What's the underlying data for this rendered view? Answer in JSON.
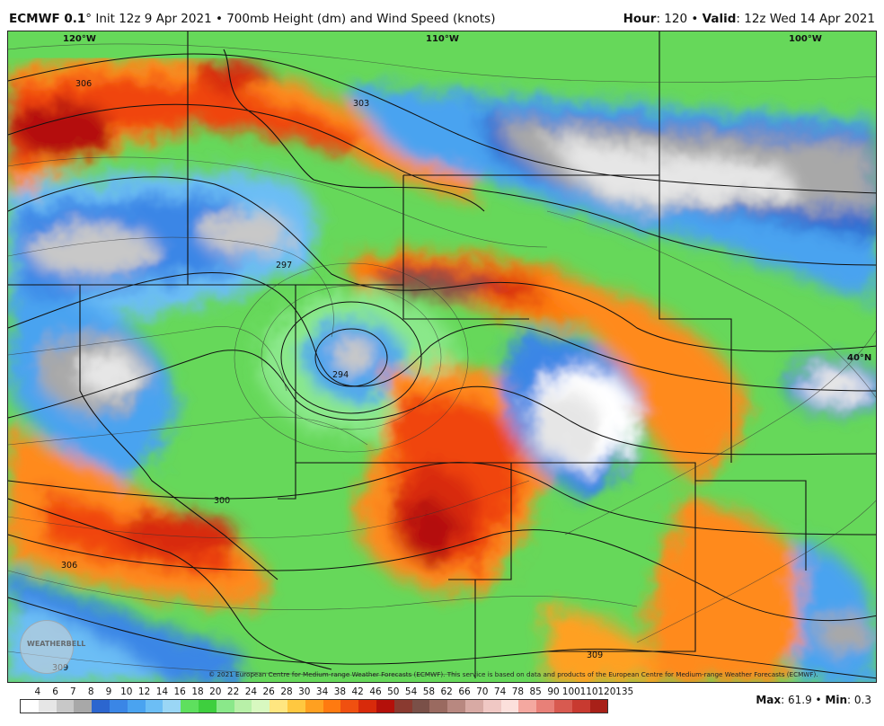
{
  "title": {
    "model": "ECMWF 0.1",
    "degree": "°",
    "init": "Init 12z 9 Apr 2021",
    "sep": "•",
    "product": "700mb Height (dm) and Wind Speed (knots)",
    "hour_label": "Hour",
    "hour_value": "120",
    "valid_label": "Valid",
    "valid_value": "12z Wed 14 Apr 2021"
  },
  "map": {
    "lon_labels": [
      "120°W",
      "110°W",
      "100°W"
    ],
    "lat_labels": [
      "40°N"
    ],
    "height_labels": [
      "306",
      "303",
      "297",
      "294",
      "300",
      "306",
      "309",
      "309"
    ]
  },
  "copyright": "© 2021 European Centre for Medium-range Weather Forecasts (ECMWF). This service is based on data and products of the European Centre for Medium-range Weather Forecasts (ECMWF).",
  "logo_text": "WEATHERBELL",
  "scale": {
    "ticks": [
      "4",
      "6",
      "7",
      "8",
      "9",
      "10",
      "12",
      "14",
      "16",
      "18",
      "20",
      "22",
      "24",
      "26",
      "28",
      "30",
      "34",
      "38",
      "42",
      "46",
      "50",
      "54",
      "58",
      "62",
      "66",
      "70",
      "74",
      "78",
      "85",
      "90",
      "100",
      "110",
      "120",
      "135"
    ],
    "colors": [
      "#ffffff",
      "#e6e6e6",
      "#c8c8c8",
      "#a8a8a8",
      "#2c66cf",
      "#3a86e6",
      "#4aa3f0",
      "#6cbef5",
      "#9ad6f5",
      "#5ee05e",
      "#3ecf3e",
      "#8ae88a",
      "#b8f0a8",
      "#d8f8c0",
      "#ffe680",
      "#ffc840",
      "#ffa020",
      "#ff7a10",
      "#f05010",
      "#d82a0a",
      "#b4100a",
      "#8a3a30",
      "#7a5048",
      "#9a6a60",
      "#b88880",
      "#d8aaa4",
      "#f0c8c4",
      "#fce0dc",
      "#f4a8a0",
      "#e88078",
      "#d85a50",
      "#c83a30",
      "#a82018"
    ]
  },
  "stats": {
    "max_label": "Max",
    "max_value": "61.9",
    "min_label": "Min",
    "min_value": "0.3"
  }
}
